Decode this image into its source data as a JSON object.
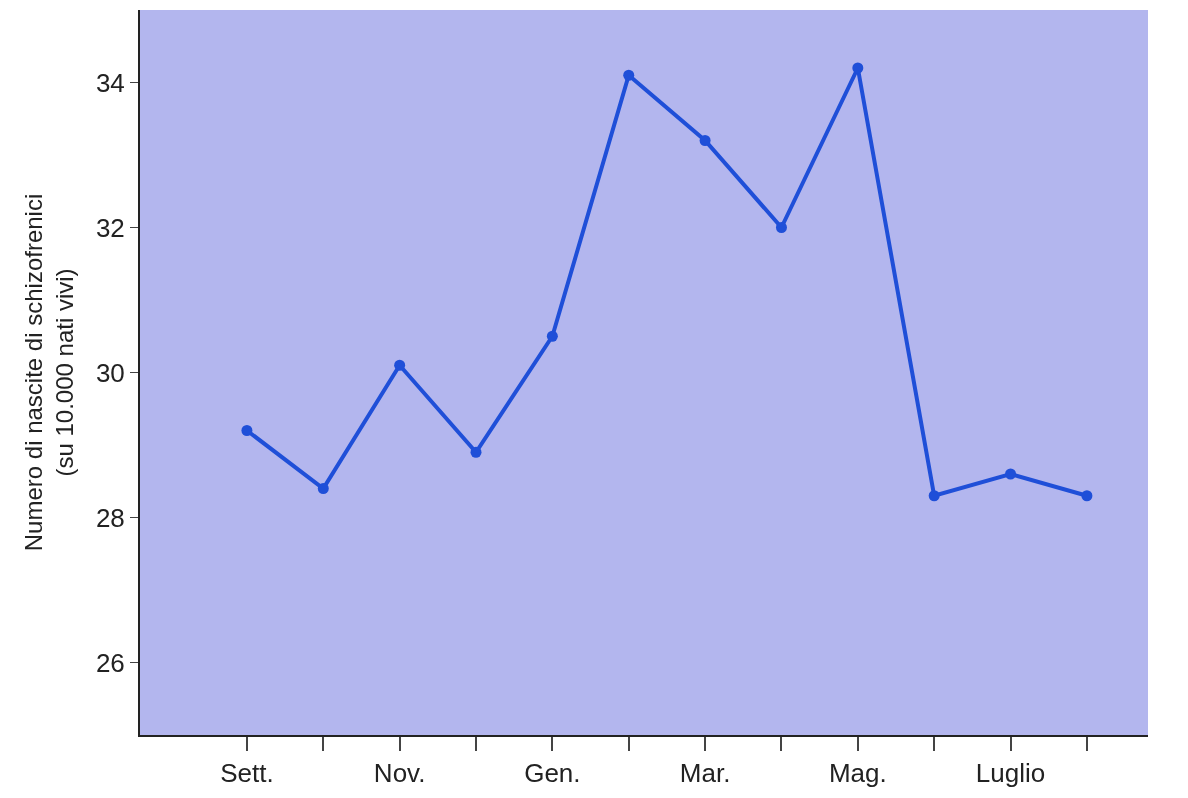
{
  "chart_data": {
    "type": "line",
    "ylabel": "Numero di nascite di schizofrenici\n(su 10.000 nati vivi)",
    "categories": [
      "Sett.",
      null,
      "Nov.",
      null,
      "Gen.",
      null,
      "Mar.",
      null,
      "Mag.",
      null,
      "Luglio",
      null
    ],
    "series": [
      {
        "color": "#1f4fd8",
        "values": [
          29.2,
          28.4,
          30.1,
          28.9,
          30.5,
          34.1,
          33.2,
          32.0,
          34.2,
          28.3,
          28.6,
          28.3
        ]
      }
    ],
    "ylim": [
      25,
      35
    ],
    "yticks": [
      26,
      28,
      30,
      32,
      34
    ],
    "grid": false,
    "marker": "circle",
    "line_style": "solid"
  }
}
